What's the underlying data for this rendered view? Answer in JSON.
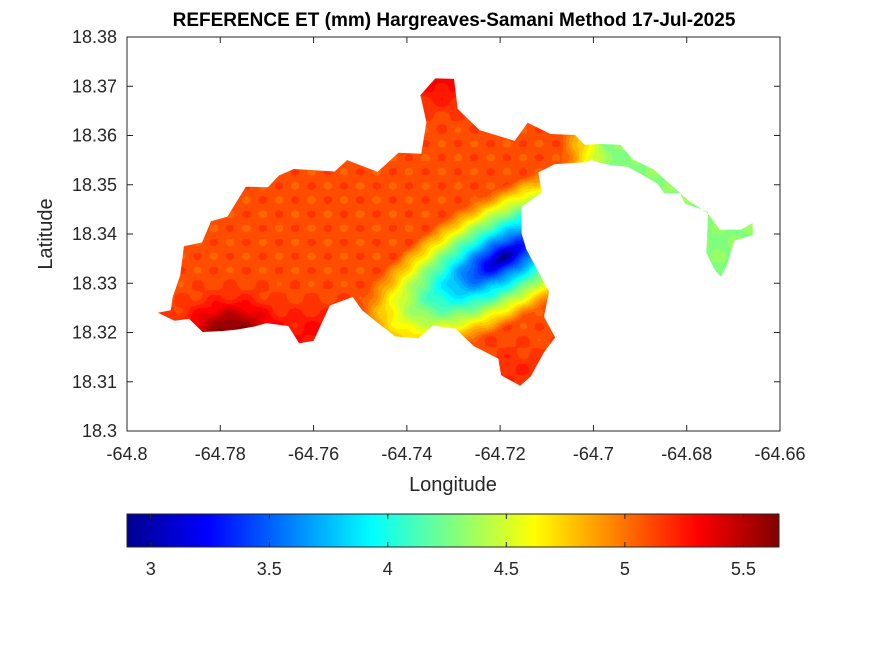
{
  "chart_data": {
    "type": "heatmap",
    "title": "REFERENCE ET (mm) Hargreaves-Samani Method  17-Jul-2025",
    "xlabel": "Longitude",
    "ylabel": "Latitude",
    "xlim": [
      -64.8,
      -64.66
    ],
    "ylim": [
      18.3,
      18.38
    ],
    "x_ticks": [
      "-64.8",
      "-64.78",
      "-64.76",
      "-64.74",
      "-64.72",
      "-64.7",
      "-64.68",
      "-64.66"
    ],
    "y_ticks": [
      "18.3",
      "18.31",
      "18.32",
      "18.33",
      "18.34",
      "18.35",
      "18.36",
      "18.37",
      "18.38"
    ],
    "grid": false,
    "colormap": "jet",
    "colorbar": {
      "orientation": "horizontal",
      "position": "bottom",
      "range": [
        2.9,
        5.65
      ],
      "ticks": [
        "3",
        "3.5",
        "4",
        "4.5",
        "5",
        "5.5"
      ]
    },
    "land_outline": [
      [
        -64.7934,
        18.324
      ],
      [
        -64.7906,
        18.3245
      ],
      [
        -64.7902,
        18.3272
      ],
      [
        -64.7886,
        18.3316
      ],
      [
        -64.7878,
        18.3375
      ],
      [
        -64.7839,
        18.3383
      ],
      [
        -64.782,
        18.3426
      ],
      [
        -64.7785,
        18.3435
      ],
      [
        -64.7745,
        18.3496
      ],
      [
        -64.7698,
        18.3495
      ],
      [
        -64.7674,
        18.3519
      ],
      [
        -64.7642,
        18.3532
      ],
      [
        -64.7555,
        18.3527
      ],
      [
        -64.7528,
        18.355
      ],
      [
        -64.7463,
        18.3526
      ],
      [
        -64.7418,
        18.3565
      ],
      [
        -64.7369,
        18.3563
      ],
      [
        -64.7358,
        18.3627
      ],
      [
        -64.7371,
        18.3682
      ],
      [
        -64.7339,
        18.3716
      ],
      [
        -64.7299,
        18.3715
      ],
      [
        -64.7291,
        18.3654
      ],
      [
        -64.7244,
        18.3611
      ],
      [
        -64.7169,
        18.3589
      ],
      [
        -64.7141,
        18.3626
      ],
      [
        -64.7092,
        18.3603
      ],
      [
        -64.7039,
        18.3601
      ],
      [
        -64.7019,
        18.3581
      ],
      [
        -64.6985,
        18.3583
      ],
      [
        -64.6942,
        18.3581
      ],
      [
        -64.6915,
        18.3551
      ],
      [
        -64.6871,
        18.3531
      ],
      [
        -64.6824,
        18.3492
      ],
      [
        -64.6795,
        18.3467
      ],
      [
        -64.6756,
        18.3443
      ],
      [
        -64.6729,
        18.3409
      ],
      [
        -64.6684,
        18.3409
      ],
      [
        -64.6659,
        18.3422
      ],
      [
        -64.6658,
        18.3398
      ],
      [
        -64.6698,
        18.3386
      ],
      [
        -64.6714,
        18.3335
      ],
      [
        -64.6727,
        18.3313
      ],
      [
        -64.6741,
        18.3329
      ],
      [
        -64.6758,
        18.3362
      ],
      [
        -64.6754,
        18.3445
      ],
      [
        -64.6804,
        18.3462
      ],
      [
        -64.6814,
        18.3483
      ],
      [
        -64.6848,
        18.3483
      ],
      [
        -64.6864,
        18.3503
      ],
      [
        -64.6925,
        18.3536
      ],
      [
        -64.6963,
        18.354
      ],
      [
        -64.7001,
        18.3548
      ],
      [
        -64.7002,
        18.3552
      ],
      [
        -64.7013,
        18.3546
      ],
      [
        -64.7083,
        18.3542
      ],
      [
        -64.7118,
        18.3525
      ],
      [
        -64.7111,
        18.3484
      ],
      [
        -64.7154,
        18.3455
      ],
      [
        -64.7154,
        18.3401
      ],
      [
        -64.7144,
        18.3369
      ],
      [
        -64.7095,
        18.3283
      ],
      [
        -64.7106,
        18.3232
      ],
      [
        -64.7082,
        18.319
      ],
      [
        -64.7106,
        18.316
      ],
      [
        -64.7134,
        18.3111
      ],
      [
        -64.7157,
        18.3092
      ],
      [
        -64.7198,
        18.3113
      ],
      [
        -64.7204,
        18.3147
      ],
      [
        -64.7256,
        18.3172
      ],
      [
        -64.7296,
        18.3208
      ],
      [
        -64.7344,
        18.3214
      ],
      [
        -64.7376,
        18.3188
      ],
      [
        -64.7425,
        18.3192
      ],
      [
        -64.7459,
        18.3217
      ],
      [
        -64.7496,
        18.3245
      ],
      [
        -64.7516,
        18.3272
      ],
      [
        -64.7565,
        18.3255
      ],
      [
        -64.76,
        18.3183
      ],
      [
        -64.7631,
        18.3178
      ],
      [
        -64.7654,
        18.3213
      ],
      [
        -64.7701,
        18.3219
      ],
      [
        -64.7728,
        18.3212
      ],
      [
        -64.7763,
        18.3206
      ],
      [
        -64.7794,
        18.3203
      ],
      [
        -64.7838,
        18.3201
      ],
      [
        -64.7867,
        18.3228
      ],
      [
        -64.7898,
        18.3224
      ],
      [
        -64.7934,
        18.324
      ]
    ],
    "value_field": {
      "min_value": 2.9,
      "min_location": [
        -64.7195,
        18.3352
      ],
      "edge_value": 5.1,
      "hotspots": [
        {
          "lon": -64.7775,
          "lat": 18.3202,
          "value": 5.65
        },
        {
          "lon": -64.7325,
          "lat": 18.371,
          "value": 5.3
        },
        {
          "lon": -64.7585,
          "lat": 18.3195,
          "value": 5.3
        },
        {
          "lon": -64.7175,
          "lat": 18.3115,
          "value": 5.2
        }
      ],
      "east_lowland_value": 4.3
    }
  }
}
